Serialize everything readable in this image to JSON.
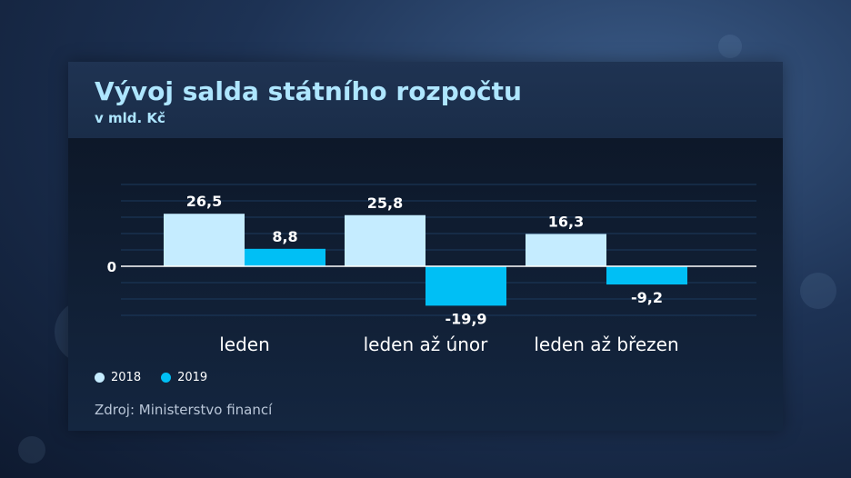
{
  "header": {
    "title": "Vývoj salda státního rozpočtu",
    "subtitle": "v mld. Kč"
  },
  "source": "Zdroj: Ministerstvo financí",
  "colors": {
    "series_2018": "#c5ecff",
    "series_2019": "#00bff5",
    "grid": "#1c3a5c",
    "baseline": "#ffffff",
    "title": "#aee6ff"
  },
  "chart_data": {
    "type": "bar",
    "title": "Vývoj salda státního rozpočtu",
    "subtitle": "v mld. Kč",
    "categories": [
      "leden",
      "leden až únor",
      "leden až březen"
    ],
    "series": [
      {
        "name": "2018",
        "values": [
          26.5,
          25.8,
          16.3
        ]
      },
      {
        "name": "2019",
        "values": [
          8.8,
          -19.9,
          -9.2
        ]
      }
    ],
    "value_labels": [
      [
        "26,5",
        "25,8",
        "16,3"
      ],
      [
        "8,8",
        "-19,9",
        "-9,2"
      ]
    ],
    "y_tick_labels": [
      "0"
    ],
    "grid": true,
    "legend_position": "bottom-left"
  }
}
